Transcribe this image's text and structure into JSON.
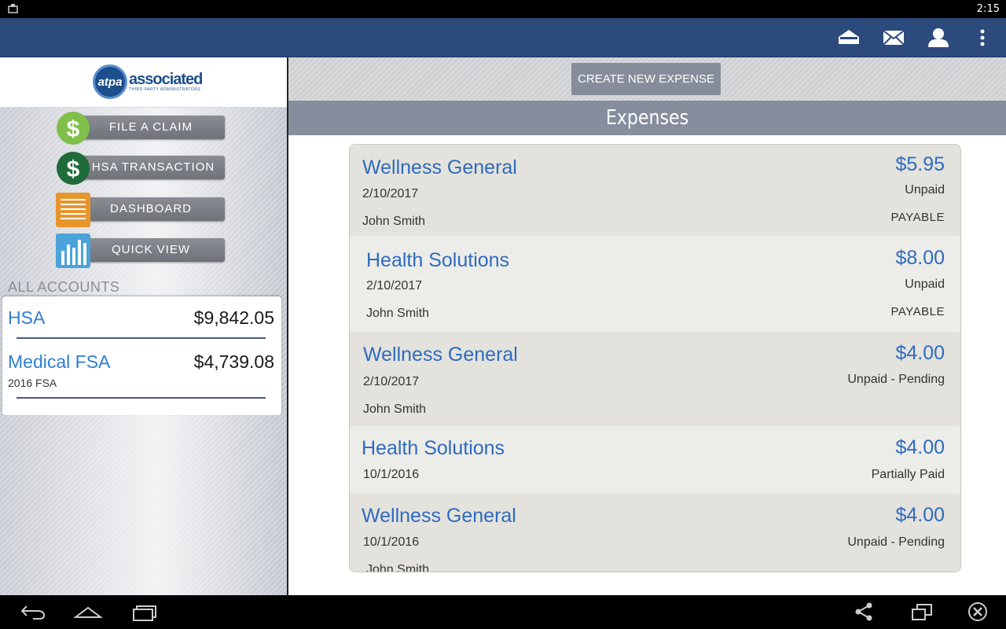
{
  "status_bar": {
    "time": "2:15"
  },
  "action_bar": {
    "icons": [
      "home-icon",
      "mail-icon",
      "person-icon",
      "overflow-menu-icon"
    ]
  },
  "logo": {
    "initials": "atpa",
    "name": "associated",
    "tagline": "THIRD PARTY ADMINISTRATORS"
  },
  "sidebar": {
    "nav": [
      {
        "label": "FILE A CLAIM",
        "icon": "dollar-icon"
      },
      {
        "label": "HSA TRANSACTION",
        "icon": "dollar-icon"
      },
      {
        "label": "DASHBOARD",
        "icon": "receipt-icon"
      },
      {
        "label": "QUICK VIEW",
        "icon": "bar-chart-icon"
      }
    ],
    "accounts_heading": "ALL ACCOUNTS",
    "accounts": [
      {
        "name": "HSA",
        "balance": "$9,842.05",
        "sub": ""
      },
      {
        "name": "Medical FSA",
        "balance": "$4,739.08",
        "sub": "2016 FSA"
      }
    ]
  },
  "main": {
    "create_button": "CREATE NEW EXPENSE",
    "title": "Expenses",
    "expenses": [
      {
        "payee": "Wellness General",
        "date": "2/10/2017",
        "person": "John Smith",
        "amount": "$5.95",
        "status": "Unpaid",
        "type": "PAYABLE"
      },
      {
        "payee": "Health Solutions",
        "date": "2/10/2017",
        "person": "John Smith",
        "amount": "$8.00",
        "status": "Unpaid",
        "type": "PAYABLE"
      },
      {
        "payee": "Wellness General",
        "date": "2/10/2017",
        "person": "John Smith",
        "amount": "$4.00",
        "status": "Unpaid - Pending",
        "type": ""
      },
      {
        "payee": "Health Solutions",
        "date": "10/1/2016",
        "person": "",
        "amount": "$4.00",
        "status": "Partially Paid",
        "type": ""
      },
      {
        "payee": "Wellness General",
        "date": "10/1/2016",
        "person": "John Smith",
        "amount": "$4.00",
        "status": "Unpaid - Pending",
        "type": ""
      }
    ]
  },
  "nav_bar": {
    "icons": [
      "back-icon",
      "home-outline-icon",
      "recent-apps-icon",
      "share-icon",
      "window-icon",
      "close-circle-icon"
    ]
  }
}
